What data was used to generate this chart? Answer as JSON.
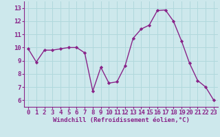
{
  "x": [
    0,
    1,
    2,
    3,
    4,
    5,
    6,
    7,
    8,
    9,
    10,
    11,
    12,
    13,
    14,
    15,
    16,
    17,
    18,
    19,
    20,
    21,
    22,
    23
  ],
  "y": [
    9.9,
    8.9,
    9.8,
    9.8,
    9.9,
    10.0,
    10.0,
    9.6,
    6.7,
    8.5,
    7.3,
    7.4,
    8.6,
    10.7,
    11.4,
    11.7,
    12.8,
    12.85,
    12.0,
    10.5,
    8.8,
    7.5,
    7.0,
    6.0
  ],
  "line_color": "#882288",
  "marker": "D",
  "marker_size": 2.2,
  "bg_color": "#cde8ec",
  "grid_color": "#b0d8dc",
  "xlabel": "Windchill (Refroidissement éolien,°C)",
  "tick_color": "#882288",
  "axis_color": "#882288",
  "ylim": [
    5.5,
    13.5
  ],
  "xlim": [
    -0.5,
    23.5
  ],
  "yticks": [
    6,
    7,
    8,
    9,
    10,
    11,
    12,
    13
  ],
  "xticks": [
    0,
    1,
    2,
    3,
    4,
    5,
    6,
    7,
    8,
    9,
    10,
    11,
    12,
    13,
    14,
    15,
    16,
    17,
    18,
    19,
    20,
    21,
    22,
    23
  ],
  "font_size": 6.5,
  "label_font_size": 6.5,
  "line_width": 1.0
}
